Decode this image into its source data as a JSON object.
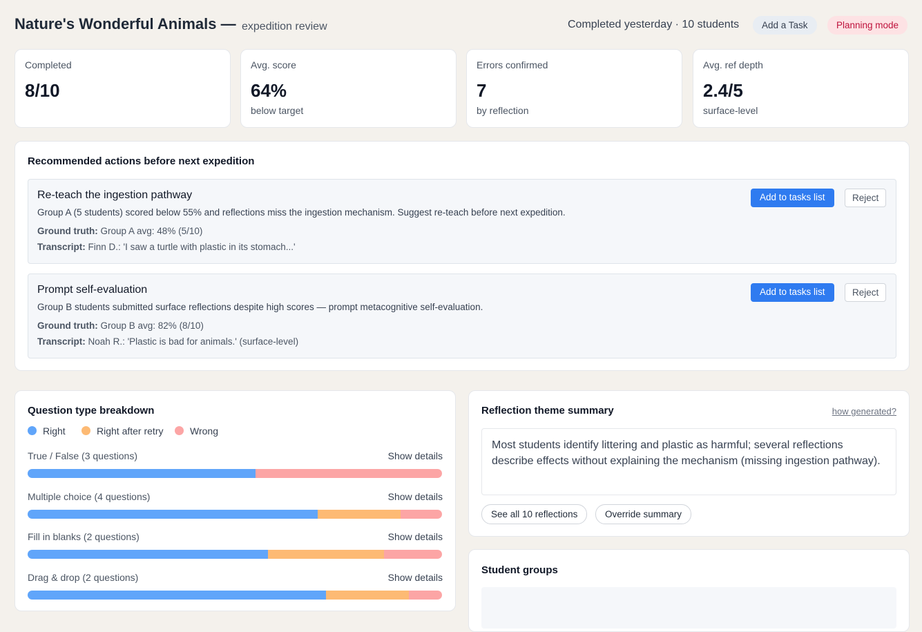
{
  "header": {
    "title": "Nature's Wonderful Animals —",
    "subtitle": "expedition review",
    "status": "Completed yesterday · 10 students",
    "add_task": "Add a Task",
    "mode": "Planning mode"
  },
  "stats": [
    {
      "label": "Completed",
      "value": "8/10"
    },
    {
      "label": "Avg. score",
      "value": "64%",
      "note": "below target"
    },
    {
      "label": "Errors confirmed",
      "value": "7",
      "note": "by reflection"
    },
    {
      "label": "Avg. ref depth",
      "value": "2.4/5",
      "note": "surface-level"
    }
  ],
  "actions": {
    "title": "Recommended actions before next expedition",
    "add_label": "Add to tasks list",
    "reject_label": "Reject",
    "truth_label": "Ground truth:",
    "transcript_label": "Transcript:",
    "items": [
      {
        "title": "Re-teach the ingestion pathway",
        "description": "Group A (5 students) scored below 55% and reflections miss the ingestion mechanism. Suggest re-teach before next expedition.",
        "truth": "Group A avg: 48% (5/10)",
        "transcript": "Finn D.: 'I saw a turtle with plastic in its stomach...'"
      },
      {
        "title": "Prompt self-evaluation",
        "description": "Group B students submitted surface reflections despite high scores — prompt metacognitive self-evaluation.",
        "truth": "Group B avg: 82% (8/10)",
        "transcript": "Noah R.: 'Plastic is bad for animals.' (surface-level)"
      }
    ]
  },
  "breakdown": {
    "title": "Question type breakdown",
    "details_label": "Show details",
    "legend": [
      {
        "name": "Right",
        "color": "#60a5fa"
      },
      {
        "name": "Right after retry",
        "color": "#fdba74"
      },
      {
        "name": "Wrong",
        "color": "#fca5a5"
      }
    ],
    "rows": [
      {
        "label": "True / False (3 questions)",
        "values": [
          55,
          0,
          45
        ]
      },
      {
        "label": "Multiple choice (4 questions)",
        "values": [
          70,
          20,
          10
        ]
      },
      {
        "label": "Fill in blanks (2 questions)",
        "values": [
          58,
          28,
          14
        ]
      },
      {
        "label": "Drag & drop (2 questions)",
        "values": [
          72,
          20,
          8
        ]
      }
    ]
  },
  "reflection": {
    "title": "Reflection theme summary",
    "link": "how generated?",
    "summary": "Most students identify littering and plastic as harmful; several reflections describe effects without explaining the mechanism (missing ingestion pathway).",
    "see_all": "See all 10 reflections",
    "override": "Override summary"
  },
  "groups": {
    "title": "Student groups"
  }
}
